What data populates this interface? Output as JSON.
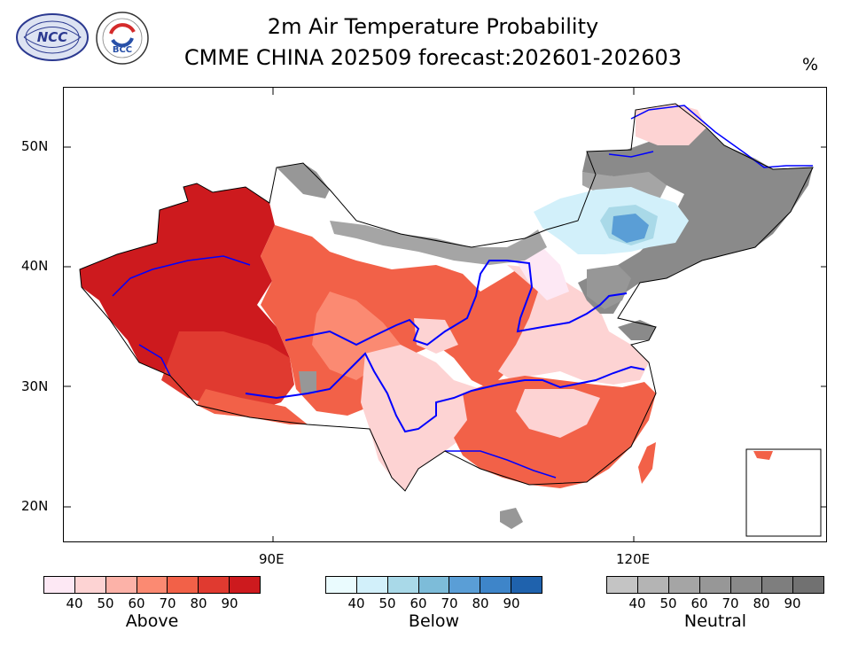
{
  "title_line1": "2m Air Temperature Probability",
  "title_line2": "CMME CHINA 202509 forecast:202601-202603",
  "unit": "%",
  "logos": [
    {
      "name": "ncc-logo",
      "text": "NCC"
    },
    {
      "name": "bcc-logo",
      "text": "BCC"
    }
  ],
  "axes": {
    "y_labels": [
      "50N",
      "40N",
      "30N",
      "20N"
    ],
    "x_labels": [
      "90E",
      "120E"
    ]
  },
  "legends": [
    {
      "name": "above-legend",
      "title": "Above",
      "ticks": [
        "40",
        "50",
        "60",
        "70",
        "80",
        "90"
      ],
      "colors": [
        "#fde8f4",
        "#fdd3d3",
        "#fcb2a8",
        "#fb8a72",
        "#f26148",
        "#e03a30",
        "#cd1a1e"
      ]
    },
    {
      "name": "below-legend",
      "title": "Below",
      "ticks": [
        "40",
        "50",
        "60",
        "70",
        "80",
        "90"
      ],
      "colors": [
        "#eafbfe",
        "#d2f0fa",
        "#a9d9e8",
        "#7dbcd9",
        "#5a9ed6",
        "#3e85c9",
        "#1f62ad"
      ]
    },
    {
      "name": "neutral-legend",
      "title": "Neutral",
      "ticks": [
        "40",
        "50",
        "60",
        "70",
        "80",
        "90"
      ],
      "colors": [
        "#c4c4c4",
        "#b4b4b4",
        "#a5a5a5",
        "#979797",
        "#8a8a8a",
        "#7e7e7e",
        "#717171"
      ]
    }
  ],
  "colors": {
    "river": "#0000ff",
    "border": "#000000"
  }
}
